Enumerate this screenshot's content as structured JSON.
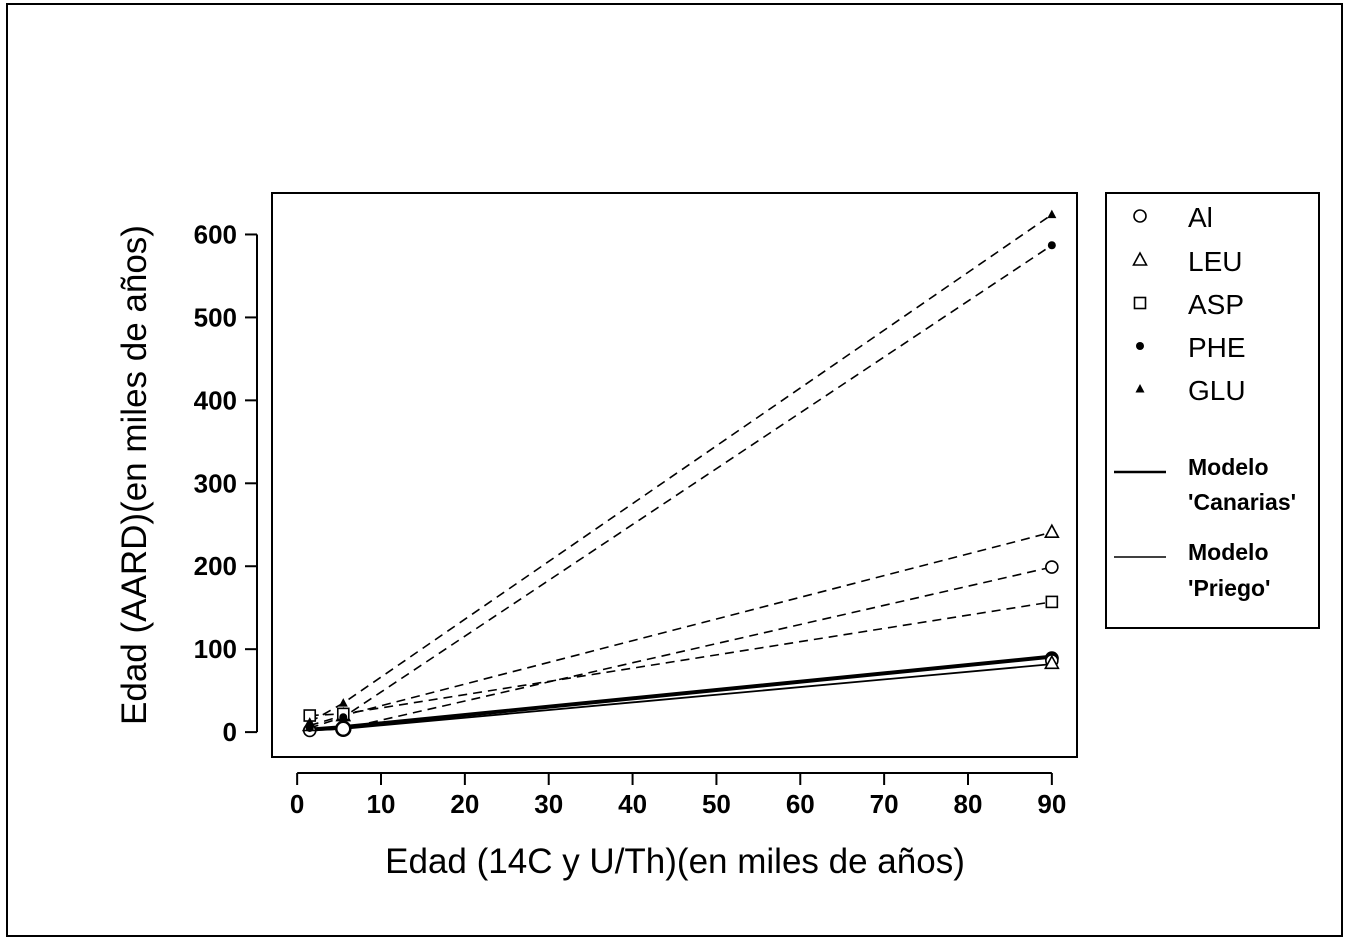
{
  "chart_data": {
    "type": "line",
    "title": "",
    "xlabel": "Edad (14C y U/Th)(en miles de años)",
    "ylabel": "Edad (AARD)(en miles de años)",
    "xlim": [
      -3,
      93
    ],
    "ylim": [
      -30,
      650
    ],
    "xticks": [
      "0",
      "10",
      "20",
      "30",
      "40",
      "50",
      "60",
      "70",
      "80",
      "90"
    ],
    "yticks": [
      "0",
      "100",
      "200",
      "300",
      "400",
      "500",
      "600"
    ],
    "grid": false,
    "legend_position": "right",
    "series": [
      {
        "name": "Al",
        "marker": "circle-open",
        "line": "dashed",
        "x": [
          1.5,
          5.5,
          90
        ],
        "y": [
          2,
          4,
          199
        ]
      },
      {
        "name": "LEU",
        "marker": "triangle-open",
        "line": "dashed",
        "x": [
          1.5,
          5.5,
          90
        ],
        "y": [
          8,
          20,
          241
        ]
      },
      {
        "name": "ASP",
        "marker": "square-open",
        "line": "dashed",
        "x": [
          1.5,
          5.5,
          90
        ],
        "y": [
          20,
          22,
          157
        ]
      },
      {
        "name": "PHE",
        "marker": "circle-filled",
        "line": "dashed",
        "x": [
          1.5,
          5.5,
          90
        ],
        "y": [
          5,
          18,
          587
        ]
      },
      {
        "name": "GLU",
        "marker": "triangle-filled",
        "line": "dashed",
        "x": [
          1.5,
          5.5,
          90
        ],
        "y": [
          12,
          35,
          624
        ]
      }
    ],
    "models": [
      {
        "name_line1": "Modelo",
        "name_line2": "'Canarias'",
        "line": "solid-thick",
        "x": [
          1.5,
          5.5,
          90
        ],
        "y": [
          3,
          6,
          91
        ]
      },
      {
        "name_line1": "Modelo",
        "name_line2": "'Priego'",
        "line": "solid-thin",
        "x": [
          1.5,
          5.5,
          90
        ],
        "y": [
          2,
          4,
          82
        ]
      }
    ],
    "model_markers": [
      {
        "marker": "circle-open-large",
        "x": 5.5,
        "y": 4
      },
      {
        "marker": "circle-filled-large",
        "x": 90,
        "y": 89
      },
      {
        "marker": "circle-open",
        "x": 90,
        "y": 86
      },
      {
        "marker": "triangle-open",
        "x": 90,
        "y": 83
      }
    ]
  }
}
